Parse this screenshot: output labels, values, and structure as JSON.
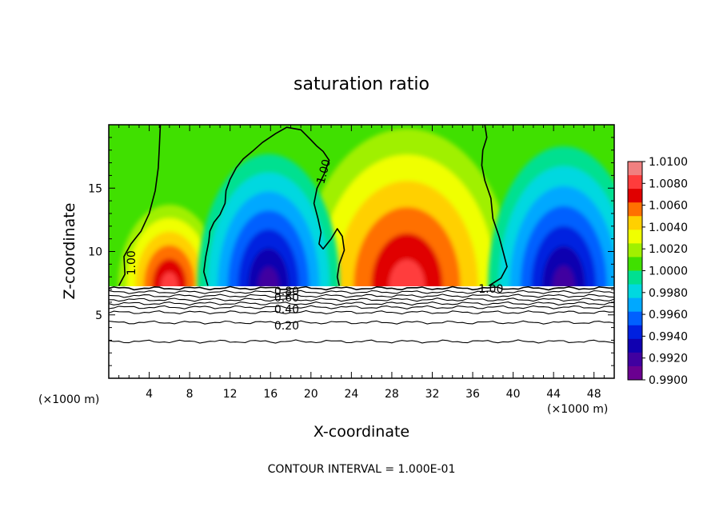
{
  "chart_data": {
    "type": "heatmap",
    "title": "saturation ratio",
    "xlabel": "X-coordinate",
    "ylabel": "Z-coordinate",
    "x_unit_left": "(×1000 m)",
    "x_unit_right": "(×1000 m)",
    "xlim": [
      0,
      50
    ],
    "ylim": [
      0,
      20
    ],
    "x_ticks": [
      4,
      8,
      12,
      16,
      20,
      24,
      28,
      32,
      36,
      40,
      44,
      48
    ],
    "x_tick_labels": [
      "4",
      "8",
      "12",
      "16",
      "20",
      "24",
      "28",
      "32",
      "36",
      "40",
      "44",
      "48"
    ],
    "y_ticks": [
      5,
      10,
      15
    ],
    "y_tick_labels": [
      "5",
      "10",
      "15"
    ],
    "colorbar": {
      "range": [
        0.99,
        1.01
      ],
      "labels": [
        "1.0100",
        "1.0080",
        "1.0060",
        "1.0040",
        "1.0020",
        "1.0000",
        "0.9980",
        "0.9960",
        "0.9940",
        "0.9920",
        "0.9900"
      ],
      "colors": [
        "#f08080",
        "#ff3c3c",
        "#e00000",
        "#ff7000",
        "#ffd000",
        "#f0ff00",
        "#a0f000",
        "#40e000",
        "#00e090",
        "#00d8e0",
        "#00a8ff",
        "#0060ff",
        "#0020e0",
        "#1000b0",
        "#4000a0",
        "#6a0090"
      ]
    },
    "terrain_top_z": 7.3,
    "contour_interval_text": "CONTOUR INTERVAL = 1.000E-01",
    "contour_labels": [
      {
        "text": "1.00",
        "x": 2.3,
        "z": 9.1,
        "angle": -90
      },
      {
        "text": "1.00",
        "x": 21.3,
        "z": 16.3,
        "angle": -75
      },
      {
        "text": "1.00",
        "x": 37.8,
        "z": 7.0,
        "angle": 0
      },
      {
        "text": "0.80",
        "x": 17.6,
        "z": 6.8,
        "angle": 0
      },
      {
        "text": "0.60",
        "x": 17.6,
        "z": 6.3,
        "angle": 0
      },
      {
        "text": "0.40",
        "x": 17.6,
        "z": 5.4,
        "angle": 0
      },
      {
        "text": "0.20",
        "x": 17.6,
        "z": 4.1,
        "angle": 0
      }
    ],
    "subsat_levels_z": [
      7.1,
      6.8,
      6.5,
      6.2,
      5.9,
      5.6,
      5.2,
      4.4,
      2.9
    ],
    "features": [
      {
        "kind": "supersaturated",
        "x": 6.0,
        "z": 7.3,
        "sx": 2.3,
        "sz": 3.2,
        "peak": 1.01
      },
      {
        "kind": "supersaturated",
        "x": 29.5,
        "z": 7.3,
        "sx": 4.8,
        "sz": 6.2,
        "peak": 1.01
      },
      {
        "kind": "subsaturated",
        "x": 15.8,
        "z": 7.3,
        "sx": 3.2,
        "sz": 5.2,
        "peak": 0.99
      },
      {
        "kind": "subsaturated",
        "x": 45.0,
        "z": 7.3,
        "sx": 3.4,
        "sz": 5.5,
        "peak": 0.99
      }
    ],
    "grid": false
  }
}
